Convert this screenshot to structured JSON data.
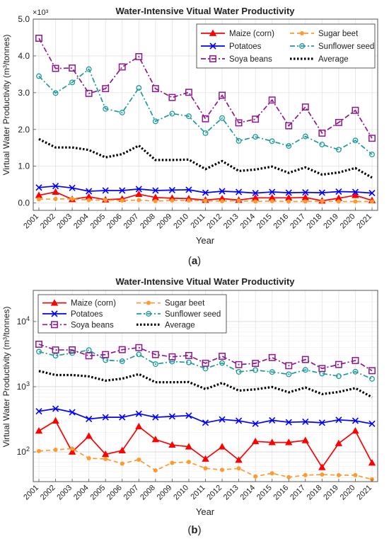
{
  "chart_data": [
    {
      "panel_label": "(a)",
      "panel_letter": "a",
      "type": "line",
      "title": "Water-Intensive Vitual Water Productivity",
      "xlabel": "Year",
      "ylabel": "Virtual Water Productivity (m³/tonnes)",
      "y_scale": "linear",
      "y_multiplier": "×10³",
      "ylim": [
        -0.2,
        5.0
      ],
      "yticks": [
        0.0,
        1.0,
        2.0,
        3.0,
        4.0,
        5.0
      ],
      "ytick_labels": [
        "0.0",
        "1.0",
        "2.0",
        "3.0",
        "4.0",
        "5.0"
      ],
      "grid": true,
      "legend": "top-right",
      "x": [
        "2001",
        "2002",
        "2003",
        "2004",
        "2005",
        "2006",
        "2007",
        "2008",
        "2009",
        "2010",
        "2011",
        "2012",
        "2013",
        "2014",
        "2015",
        "2016",
        "2017",
        "2018",
        "2019",
        "2020",
        "2021"
      ],
      "series": [
        {
          "name": "Maize (corn)",
          "color": "#ff0000",
          "marker": "triangle",
          "dash": "solid",
          "values": [
            0.21,
            0.3,
            0.1,
            0.17,
            0.09,
            0.11,
            0.24,
            0.15,
            0.13,
            0.12,
            0.08,
            0.12,
            0.08,
            0.14,
            0.14,
            0.14,
            0.15,
            0.06,
            0.13,
            0.21,
            0.07
          ]
        },
        {
          "name": "Sugar beet",
          "color": "#ff9a2e",
          "marker": "dot",
          "dash": "dashed",
          "values": [
            0.1,
            0.11,
            0.11,
            0.08,
            0.08,
            0.07,
            0.08,
            0.05,
            0.07,
            0.07,
            0.06,
            0.05,
            0.06,
            0.04,
            0.05,
            0.04,
            0.04,
            0.05,
            0.04,
            0.04,
            0.04
          ]
        },
        {
          "name": "Potatoes",
          "color": "#0000ff",
          "marker": "cross",
          "dash": "solid",
          "values": [
            0.42,
            0.46,
            0.41,
            0.32,
            0.34,
            0.34,
            0.38,
            0.34,
            0.35,
            0.36,
            0.28,
            0.32,
            0.3,
            0.27,
            0.3,
            0.28,
            0.29,
            0.28,
            0.31,
            0.3,
            0.27
          ]
        },
        {
          "name": "Sunflower seed",
          "color": "#1f9a9a",
          "marker": "circle",
          "dash": "dashdot",
          "values": [
            3.45,
            2.99,
            3.28,
            3.64,
            2.56,
            2.46,
            3.13,
            2.22,
            2.43,
            2.36,
            1.9,
            2.31,
            1.69,
            1.8,
            1.68,
            1.55,
            1.81,
            1.59,
            1.45,
            1.7,
            1.32
          ]
        },
        {
          "name": "Soya beans",
          "color": "#8c1a8c",
          "marker": "square",
          "dash": "dashdot",
          "values": [
            4.48,
            3.66,
            3.67,
            2.98,
            3.11,
            3.7,
            3.98,
            3.11,
            2.87,
            3.01,
            2.29,
            2.93,
            2.18,
            2.28,
            2.8,
            2.1,
            2.61,
            1.9,
            2.19,
            2.52,
            1.76
          ]
        },
        {
          "name": "Average",
          "color": "#000000",
          "marker": "none",
          "dash": "dotted",
          "values": [
            1.74,
            1.51,
            1.51,
            1.44,
            1.24,
            1.33,
            1.56,
            1.17,
            1.17,
            1.18,
            0.92,
            1.14,
            0.87,
            0.91,
            0.99,
            0.82,
            0.97,
            0.77,
            0.83,
            0.95,
            0.69
          ]
        }
      ]
    },
    {
      "panel_label": "(b)",
      "panel_letter": "b",
      "type": "line",
      "title": "Water-Intensive Vitual Water Productivity",
      "xlabel": "Year",
      "ylabel": "Virtual Water Productivity (m³/tonnes)",
      "y_scale": "log",
      "ylim": [
        35,
        30000
      ],
      "yticks": [
        100,
        1000,
        10000
      ],
      "ytick_labels": [
        {
          "base": "10",
          "exp": "2"
        },
        {
          "base": "10",
          "exp": "3"
        },
        {
          "base": "10",
          "exp": "4"
        }
      ],
      "grid": true,
      "legend": "top-left",
      "x": [
        "2001",
        "2002",
        "2003",
        "2004",
        "2005",
        "2006",
        "2007",
        "2008",
        "2009",
        "2010",
        "2011",
        "2012",
        "2013",
        "2014",
        "2015",
        "2016",
        "2017",
        "2018",
        "2019",
        "2020",
        "2021"
      ],
      "series": [
        {
          "name": "Maize (corn)",
          "color": "#ff0000",
          "marker": "triangle",
          "dash": "solid",
          "values": [
            210,
            300,
            100,
            175,
            92,
            105,
            245,
            155,
            128,
            120,
            78,
            120,
            75,
            145,
            140,
            140,
            150,
            58,
            135,
            210,
            68
          ]
        },
        {
          "name": "Sugar beet",
          "color": "#ff9a2e",
          "marker": "dot",
          "dash": "dashed",
          "values": [
            103,
            108,
            112,
            80,
            78,
            66,
            76,
            52,
            68,
            70,
            56,
            53,
            56,
            42,
            47,
            41,
            44,
            45,
            44,
            44,
            38
          ]
        },
        {
          "name": "Potatoes",
          "color": "#0000ff",
          "marker": "cross",
          "dash": "solid",
          "values": [
            420,
            460,
            405,
            320,
            340,
            340,
            385,
            340,
            350,
            360,
            280,
            315,
            300,
            270,
            305,
            285,
            290,
            280,
            310,
            300,
            270
          ]
        },
        {
          "name": "Sunflower seed",
          "color": "#1f9a9a",
          "marker": "circle",
          "dash": "dashdot",
          "values": [
            3450,
            2990,
            3280,
            3640,
            2560,
            2460,
            3130,
            2220,
            2430,
            2360,
            1900,
            2310,
            1690,
            1800,
            1680,
            1550,
            1810,
            1590,
            1450,
            1700,
            1320
          ]
        },
        {
          "name": "Soya beans",
          "color": "#8c1a8c",
          "marker": "square",
          "dash": "dashdot",
          "values": [
            4480,
            3660,
            3670,
            2980,
            3110,
            3700,
            3980,
            3110,
            2870,
            3010,
            2290,
            2930,
            2180,
            2280,
            2800,
            2100,
            2610,
            1900,
            2190,
            2520,
            1760
          ]
        },
        {
          "name": "Average",
          "color": "#000000",
          "marker": "none",
          "dash": "dotted",
          "values": [
            1740,
            1510,
            1510,
            1440,
            1240,
            1330,
            1560,
            1170,
            1170,
            1180,
            920,
            1140,
            870,
            910,
            990,
            820,
            970,
            770,
            830,
            950,
            690
          ]
        }
      ]
    }
  ]
}
